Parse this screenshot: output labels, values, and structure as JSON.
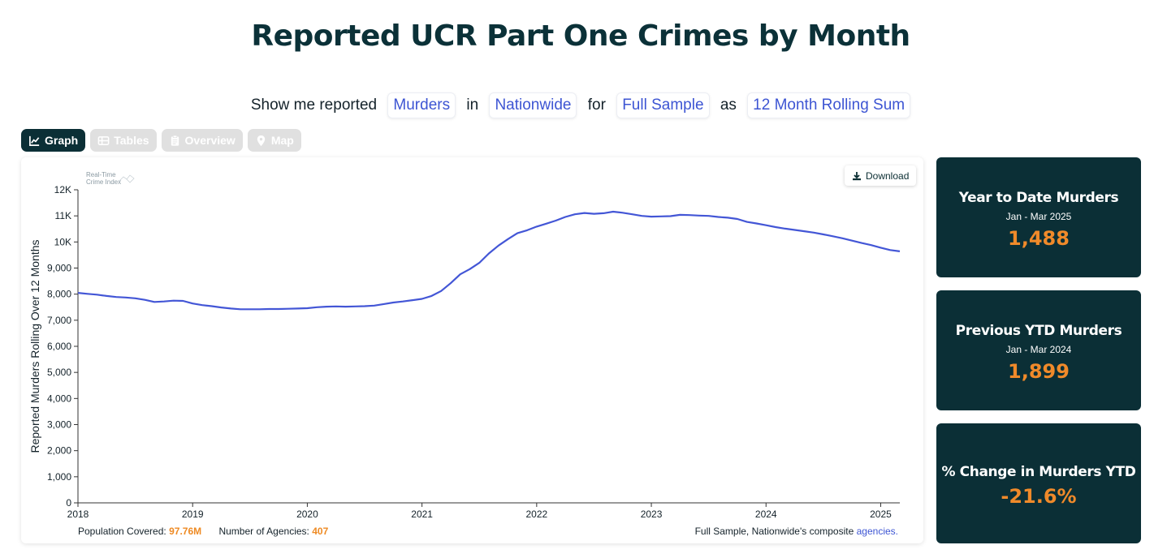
{
  "page": {
    "title": "Reported UCR Part One Crimes by Month"
  },
  "sentence": {
    "prefix": "Show me reported",
    "crime": "Murders",
    "in_word": "in",
    "location": "Nationwide",
    "for_word": "for",
    "sample": "Full Sample",
    "as_word": "as",
    "measure": "12 Month Rolling Sum"
  },
  "tabs": [
    {
      "label": "Graph",
      "icon": "line-chart-icon",
      "active": true
    },
    {
      "label": "Tables",
      "icon": "table-icon",
      "active": false
    },
    {
      "label": "Overview",
      "icon": "clipboard-icon",
      "active": false
    },
    {
      "label": "Map",
      "icon": "map-pin-icon",
      "active": false
    }
  ],
  "logo": {
    "line1": "Real-Time",
    "line2": "Crime Index"
  },
  "download_label": "Download",
  "footer": {
    "population_label": "Population Covered:",
    "population_value": "97.76M",
    "agencies_label": "Number of Agencies:",
    "agencies_value": "407",
    "source_text": "Full Sample, Nationwide's composite",
    "source_link": "agencies."
  },
  "stats": [
    {
      "title": "Year to Date Murders",
      "sub": "Jan - Mar 2025",
      "value": "1,488"
    },
    {
      "title": "Previous YTD Murders",
      "sub": "Jan - Mar 2024",
      "value": "1,899"
    },
    {
      "title": "% Change in Murders YTD",
      "sub": "",
      "value": "-21.6%"
    }
  ],
  "colors": {
    "line": "#4356d6",
    "dark": "#0b2f36",
    "accent": "#f08a2a"
  },
  "chart_data": {
    "type": "line",
    "title": "",
    "xlabel": "",
    "ylabel": "Reported Murders Rolling Over 12 Months",
    "xlim": [
      "2018-01",
      "2025-03"
    ],
    "ylim": [
      0,
      12000
    ],
    "x_ticks": [
      "2018",
      "2019",
      "2020",
      "2021",
      "2022",
      "2023",
      "2024",
      "2025"
    ],
    "y_ticks": [
      "0",
      "1,000",
      "2,000",
      "3,000",
      "4,000",
      "5,000",
      "6,000",
      "7,000",
      "8,000",
      "9,000",
      "10K",
      "11K",
      "12K"
    ],
    "grid": false,
    "series": [
      {
        "x": [
          "2018-01",
          "2018-02",
          "2018-03",
          "2018-04",
          "2018-05",
          "2018-06",
          "2018-07",
          "2018-08",
          "2018-09",
          "2018-10",
          "2018-11",
          "2018-12",
          "2019-01",
          "2019-02",
          "2019-03",
          "2019-04",
          "2019-05",
          "2019-06",
          "2019-07",
          "2019-08",
          "2019-09",
          "2019-10",
          "2019-11",
          "2019-12",
          "2020-01",
          "2020-02",
          "2020-03",
          "2020-04",
          "2020-05",
          "2020-06",
          "2020-07",
          "2020-08",
          "2020-09",
          "2020-10",
          "2020-11",
          "2020-12",
          "2021-01",
          "2021-02",
          "2021-03",
          "2021-04",
          "2021-05",
          "2021-06",
          "2021-07",
          "2021-08",
          "2021-09",
          "2021-10",
          "2021-11",
          "2021-12",
          "2022-01",
          "2022-02",
          "2022-03",
          "2022-04",
          "2022-05",
          "2022-06",
          "2022-07",
          "2022-08",
          "2022-09",
          "2022-10",
          "2022-11",
          "2022-12",
          "2023-01",
          "2023-02",
          "2023-03",
          "2023-04",
          "2023-05",
          "2023-06",
          "2023-07",
          "2023-08",
          "2023-09",
          "2023-10",
          "2023-11",
          "2023-12",
          "2024-01",
          "2024-02",
          "2024-03",
          "2024-04",
          "2024-05",
          "2024-06",
          "2024-07",
          "2024-08",
          "2024-09",
          "2024-10",
          "2024-11",
          "2024-12",
          "2025-01",
          "2025-02",
          "2025-03"
        ],
        "values": [
          8050,
          8010,
          7980,
          7930,
          7890,
          7870,
          7840,
          7780,
          7700,
          7720,
          7750,
          7740,
          7640,
          7580,
          7540,
          7490,
          7450,
          7420,
          7420,
          7420,
          7430,
          7430,
          7440,
          7450,
          7460,
          7500,
          7520,
          7530,
          7520,
          7530,
          7540,
          7560,
          7620,
          7680,
          7720,
          7770,
          7820,
          7930,
          8120,
          8420,
          8760,
          8960,
          9200,
          9560,
          9860,
          10110,
          10340,
          10450,
          10590,
          10700,
          10820,
          10960,
          11060,
          11110,
          11080,
          11100,
          11160,
          11120,
          11060,
          11000,
          10970,
          10980,
          10990,
          11040,
          11030,
          11010,
          11000,
          10960,
          10930,
          10880,
          10770,
          10710,
          10640,
          10570,
          10510,
          10460,
          10410,
          10360,
          10290,
          10220,
          10140,
          10050,
          9960,
          9880,
          9780,
          9690,
          9640
        ]
      }
    ]
  }
}
